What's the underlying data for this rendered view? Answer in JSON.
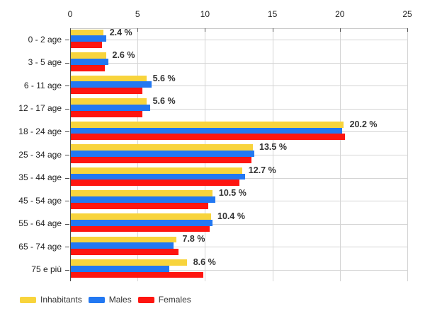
{
  "chart_data": {
    "type": "bar",
    "orientation": "horizontal",
    "title": "",
    "categories": [
      "0 - 2 age",
      "3 - 5 age",
      "6 - 11 age",
      "12 - 17 age",
      "18 - 24 age",
      "25 - 34 age",
      "35 - 44 age",
      "45 - 54 age",
      "55 - 64 age",
      "65 - 74 age",
      "75 e più"
    ],
    "series": [
      {
        "name": "Inhabitants",
        "color": "#F8D43C",
        "values": [
          2.4,
          2.6,
          5.6,
          5.6,
          20.2,
          13.5,
          12.7,
          10.5,
          10.4,
          7.8,
          8.6
        ]
      },
      {
        "name": "Males",
        "color": "#2278F2",
        "values": [
          2.6,
          2.8,
          6.0,
          5.9,
          20.1,
          13.6,
          12.9,
          10.7,
          10.5,
          7.6,
          7.3
        ]
      },
      {
        "name": "Females",
        "color": "#FE1510",
        "values": [
          2.3,
          2.5,
          5.3,
          5.3,
          20.3,
          13.4,
          12.5,
          10.2,
          10.3,
          8.0,
          9.8
        ]
      }
    ],
    "bar_labels": [
      "2.4 %",
      "2.6 %",
      "5.6 %",
      "5.6 %",
      "20.2 %",
      "13.5 %",
      "12.7 %",
      "10.5 %",
      "10.4 %",
      "7.8 %",
      "8.6 %"
    ],
    "x_ticks": [
      "0",
      "5",
      "10",
      "15",
      "20",
      "25"
    ],
    "xlim": [
      0,
      25
    ],
    "grid": true,
    "legend_position": "bottom-left",
    "xlabel": "",
    "ylabel": ""
  },
  "style_colors": {
    "axis_line": "#4a4a4a",
    "top_axis_line": "#c9c9c9",
    "gridline": "#d4d4d4",
    "tick_text": "#222222",
    "value_label_text": "#333333",
    "background": "#ffffff"
  }
}
